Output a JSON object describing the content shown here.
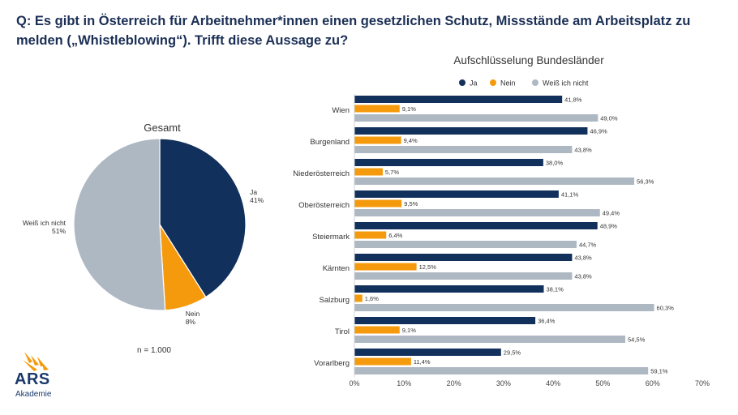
{
  "question": "Q: Es gibt in Österreich für Arbeitnehmer*innen einen gesetzlichen Schutz, Missstände am Arbeitsplatz zu melden („Whistleblowing“). Trifft diese Aussage zu?",
  "logo": {
    "name": "ARS",
    "sub": "Akademie"
  },
  "colors": {
    "ja": "#12305c",
    "nein": "#f59a0c",
    "weiss": "#aeb8c3"
  },
  "chart_data": [
    {
      "type": "pie",
      "title": "Gesamt",
      "note": "n = 1.000",
      "slices": [
        {
          "label": "Ja",
          "value": 41,
          "display": "41%"
        },
        {
          "label": "Nein",
          "value": 8,
          "display": "8%"
        },
        {
          "label": "Weiß ich nicht",
          "value": 51,
          "display": "51%"
        }
      ]
    },
    {
      "type": "bar",
      "orientation": "horizontal",
      "title": "Aufschlüsselung Bundesländer",
      "legend": [
        "Ja",
        "Nein",
        "Weiß ich nicht"
      ],
      "legend_position": "top",
      "categories": [
        "Wien",
        "Burgenland",
        "Niederösterreich",
        "Oberösterreich",
        "Steiermark",
        "Kärnten",
        "Salzburg",
        "Tirol",
        "Vorarlberg"
      ],
      "series": [
        {
          "name": "Ja",
          "values": [
            41.8,
            46.9,
            38.0,
            41.1,
            48.9,
            43.8,
            38.1,
            36.4,
            29.5
          ],
          "labels": [
            "41,8%",
            "46,9%",
            "38,0%",
            "41,1%",
            "48,9%",
            "43,8%",
            "38,1%",
            "36,4%",
            "29,5%"
          ]
        },
        {
          "name": "Nein",
          "values": [
            9.1,
            9.4,
            5.7,
            9.5,
            6.4,
            12.5,
            1.6,
            9.1,
            11.4
          ],
          "labels": [
            "9,1%",
            "9,4%",
            "5,7%",
            "9,5%",
            "6,4%",
            "12,5%",
            "1,6%",
            "9,1%",
            "11,4%"
          ]
        },
        {
          "name": "Weiß ich nicht",
          "values": [
            49.0,
            43.8,
            56.3,
            49.4,
            44.7,
            43.8,
            60.3,
            54.5,
            59.1
          ],
          "labels": [
            "49,0%",
            "43,8%",
            "56,3%",
            "49,4%",
            "44,7%",
            "43,8%",
            "60,3%",
            "54,5%",
            "59,1%"
          ]
        }
      ],
      "xlim": [
        0,
        70
      ],
      "xticks": [
        "0%",
        "10%",
        "20%",
        "30%",
        "40%",
        "50%",
        "60%",
        "70%"
      ]
    }
  ]
}
